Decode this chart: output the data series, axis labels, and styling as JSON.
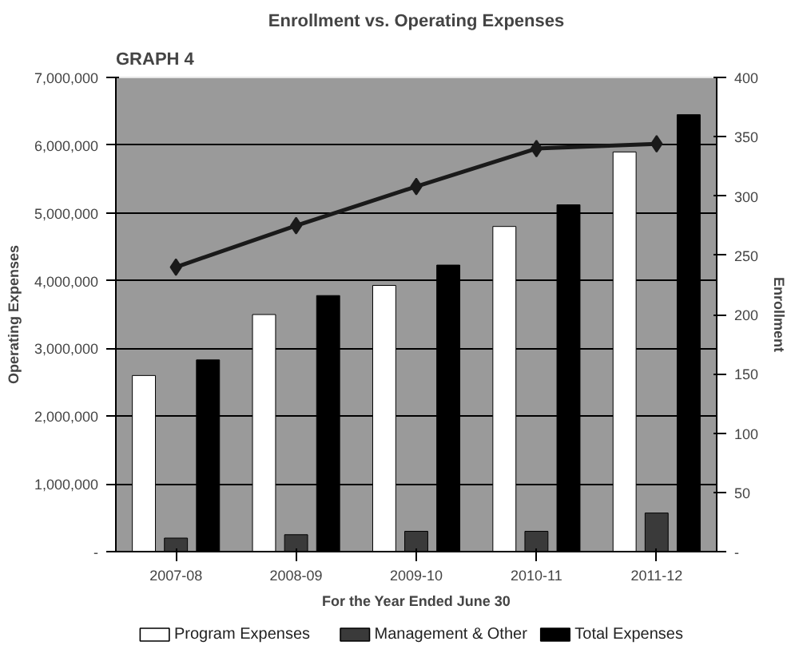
{
  "chart_data": {
    "type": "bar",
    "title": "Enrollment vs. Operating Expenses",
    "annotations": [
      "GRAPH 4"
    ],
    "xlabel": "For the Year Ended June 30",
    "ylabel": "Operating Expenses",
    "y2label": "Enrollment",
    "categories": [
      "2007-08",
      "2008-09",
      "2009-10",
      "2010-11",
      "2011-12"
    ],
    "series": [
      {
        "name": "Program Expenses",
        "color": "#ffffff",
        "values": [
          2600000,
          3500000,
          3930000,
          4800000,
          5900000
        ]
      },
      {
        "name": "Management & Other",
        "color": "#3a3a3a",
        "values": [
          200000,
          250000,
          300000,
          300000,
          570000
        ]
      },
      {
        "name": "Total Expenses",
        "color": "#000000",
        "values": [
          2830000,
          3780000,
          4230000,
          5120000,
          6450000
        ]
      },
      {
        "type": "line",
        "axis": "y2",
        "color": "#1a1a1a",
        "marker": "diamond",
        "values": [
          240,
          275,
          308,
          340,
          344
        ]
      }
    ],
    "ylim": [
      0,
      7000000
    ],
    "yticks": [
      {
        "value": 0,
        "label": "-"
      },
      {
        "value": 1000000,
        "label": "1,000,000"
      },
      {
        "value": 2000000,
        "label": "2,000,000"
      },
      {
        "value": 3000000,
        "label": "3,000,000"
      },
      {
        "value": 4000000,
        "label": "4,000,000"
      },
      {
        "value": 5000000,
        "label": "5,000,000"
      },
      {
        "value": 6000000,
        "label": "6,000,000"
      },
      {
        "value": 7000000,
        "label": "7,000,000"
      }
    ],
    "y2lim": [
      0,
      400
    ],
    "y2ticks": [
      {
        "value": 0,
        "label": "-"
      },
      50,
      100,
      150,
      200,
      250,
      300,
      350,
      400
    ],
    "grid": "y",
    "legend": "bottom"
  }
}
